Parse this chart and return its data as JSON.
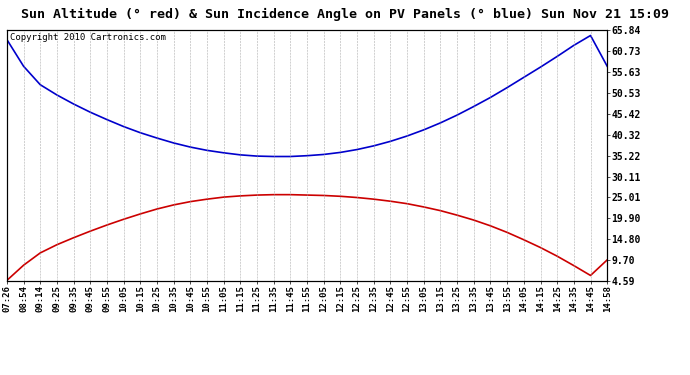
{
  "title": "Sun Altitude (° red) & Sun Incidence Angle on PV Panels (° blue) Sun Nov 21 15:09",
  "copyright": "Copyright 2010 Cartronics.com",
  "yticks": [
    4.59,
    9.7,
    14.8,
    19.9,
    25.01,
    30.11,
    35.22,
    40.32,
    45.42,
    50.53,
    55.63,
    60.73,
    65.84
  ],
  "ymin": 4.59,
  "ymax": 65.84,
  "xtick_labels": [
    "07:26",
    "08:54",
    "09:14",
    "09:25",
    "09:35",
    "09:45",
    "09:55",
    "10:05",
    "10:15",
    "10:25",
    "10:35",
    "10:45",
    "10:55",
    "11:05",
    "11:15",
    "11:25",
    "11:35",
    "11:45",
    "11:55",
    "12:05",
    "12:15",
    "12:25",
    "12:35",
    "12:45",
    "12:55",
    "13:05",
    "13:15",
    "13:25",
    "13:35",
    "13:45",
    "13:55",
    "14:05",
    "14:15",
    "14:25",
    "14:35",
    "14:45",
    "14:58"
  ],
  "red_y": [
    4.8,
    8.5,
    11.5,
    13.5,
    15.2,
    16.8,
    18.3,
    19.7,
    21.0,
    22.2,
    23.2,
    24.0,
    24.6,
    25.1,
    25.4,
    25.6,
    25.7,
    25.7,
    25.6,
    25.5,
    25.3,
    25.0,
    24.6,
    24.1,
    23.5,
    22.7,
    21.8,
    20.7,
    19.5,
    18.1,
    16.5,
    14.7,
    12.8,
    10.7,
    8.4,
    6.0,
    9.8
  ],
  "blue_y": [
    63.5,
    57.0,
    52.5,
    50.0,
    47.8,
    45.8,
    44.0,
    42.3,
    40.8,
    39.5,
    38.3,
    37.3,
    36.5,
    35.9,
    35.4,
    35.1,
    35.0,
    35.0,
    35.2,
    35.5,
    36.0,
    36.7,
    37.6,
    38.7,
    40.0,
    41.5,
    43.2,
    45.1,
    47.2,
    49.4,
    51.8,
    54.3,
    56.8,
    59.4,
    62.1,
    64.5,
    57.0
  ],
  "red_color": "#cc0000",
  "blue_color": "#0000cc",
  "bg_color": "#ffffff",
  "grid_color": "#999999",
  "title_fontsize": 9.5,
  "copyright_fontsize": 6.5,
  "tick_fontsize": 6.5,
  "ytick_fontsize": 7.0
}
